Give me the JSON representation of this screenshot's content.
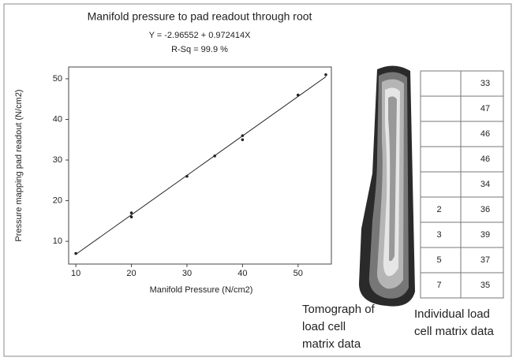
{
  "chart_data": {
    "type": "scatter",
    "title": "Manifold pressure to pad readout through root",
    "equation": "Y = -2.96552 + 0.972414X",
    "r_squared": "R-Sq =  99.9 %",
    "x_label": "Manifold Pressure (N/cm2)",
    "y_label": "Pressure mapping pad readout (N/cm2)",
    "x": [
      10,
      20,
      20,
      30,
      35,
      40,
      40,
      50,
      55
    ],
    "values": [
      7,
      16,
      17,
      26,
      31,
      35,
      36,
      46,
      51
    ],
    "fit": {
      "x": [
        10,
        55
      ],
      "values": [
        6.8,
        50.5
      ]
    },
    "color": "#222222",
    "xlim": [
      8.7,
      56
    ],
    "ylim": [
      4.4,
      52.9
    ],
    "xticks": [
      10,
      20,
      30,
      40,
      50
    ],
    "yticks": [
      10,
      20,
      30,
      40,
      50
    ]
  },
  "tomograph": {
    "caption": [
      "Tomograph of",
      "load cell",
      "matrix data"
    ]
  },
  "table": {
    "caption": [
      "Individual load",
      "cell matrix data"
    ],
    "rows": [
      [
        null,
        33
      ],
      [
        null,
        47
      ],
      [
        null,
        46
      ],
      [
        null,
        46
      ],
      [
        null,
        34
      ],
      [
        2,
        36
      ],
      [
        3,
        39
      ],
      [
        5,
        37
      ],
      [
        7,
        35
      ]
    ]
  }
}
